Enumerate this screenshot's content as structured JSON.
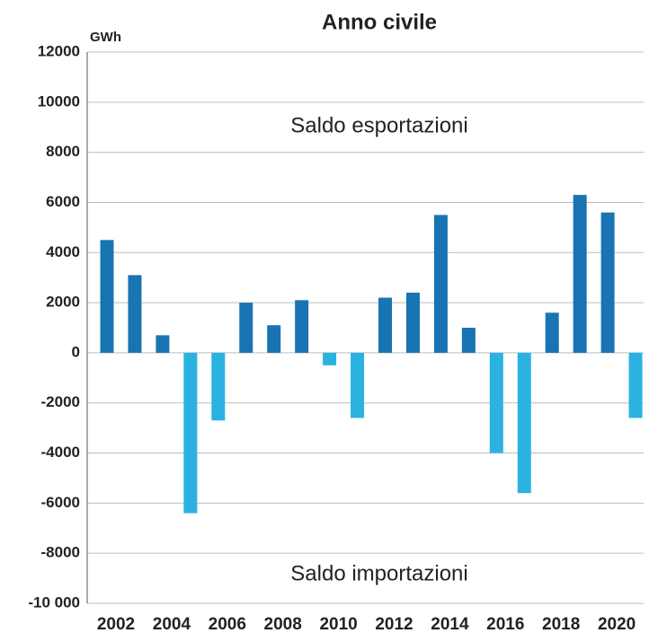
{
  "chart_data": {
    "type": "bar",
    "title": "Anno civile",
    "y_unit": "GWh",
    "annotations": [
      "Saldo esportazioni",
      "Saldo importazioni"
    ],
    "categories": [
      "2002",
      null,
      "2004",
      null,
      "2006",
      null,
      "2008",
      null,
      "2010",
      null,
      "2012",
      null,
      "2014",
      null,
      "2016",
      null,
      "2018",
      null,
      "2020",
      null
    ],
    "values": [
      4500,
      3100,
      700,
      -6400,
      -2700,
      2000,
      1100,
      2100,
      -500,
      -2600,
      2200,
      2400,
      5500,
      1000,
      -4000,
      -5600,
      1600,
      6300,
      5600,
      -2600
    ],
    "positive_color": "#1874b3",
    "negative_color": "#2bb2e0",
    "ylim": [
      -10000,
      12000
    ],
    "yticks": [
      {
        "value": -10000,
        "label": "-10 000"
      },
      -8000,
      -6000,
      -4000,
      -2000,
      0,
      2000,
      4000,
      6000,
      8000,
      10000,
      12000
    ],
    "grid": true
  }
}
